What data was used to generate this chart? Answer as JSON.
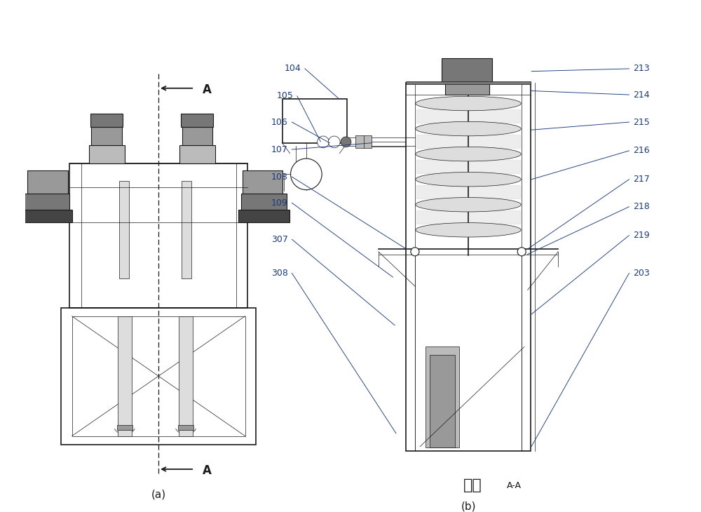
{
  "fig_width": 10.0,
  "fig_height": 7.3,
  "dpi": 100,
  "bg_color": "#ffffff",
  "line_color": "#1a1a1a",
  "label_color": "#1a3a7a",
  "gray1": "#444444",
  "gray2": "#777777",
  "gray3": "#999999",
  "gray4": "#bbbbbb",
  "gray5": "#dddddd",
  "label_fontsize": 9,
  "caption_fontsize": 11,
  "section_zh": "剪面",
  "section_en": "A-A",
  "caption_a": "(a)",
  "caption_b": "(b)",
  "left_labels": [
    "104",
    "105",
    "106",
    "107",
    "108",
    "109",
    "307",
    "308"
  ],
  "right_labels": [
    "213",
    "214",
    "215",
    "216",
    "217",
    "218",
    "219",
    "203"
  ]
}
